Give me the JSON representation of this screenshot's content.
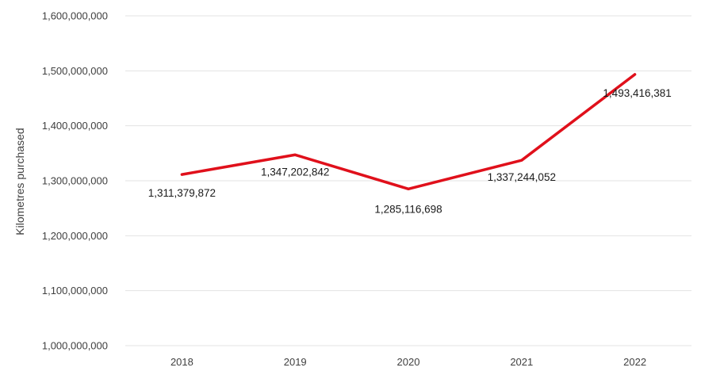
{
  "chart_data": {
    "type": "line",
    "title": "",
    "xlabel": "",
    "ylabel": "Kilometres purchased",
    "ylim": [
      1000000000,
      1600000000
    ],
    "y_ticks": [
      1000000000,
      1100000000,
      1200000000,
      1300000000,
      1400000000,
      1500000000,
      1600000000
    ],
    "y_tick_labels": [
      "1,000,000,000",
      "1,100,000,000",
      "1,200,000,000",
      "1,300,000,000",
      "1,400,000,000",
      "1,500,000,000",
      "1,600,000,000"
    ],
    "categories": [
      "2018",
      "2019",
      "2020",
      "2021",
      "2022"
    ],
    "series": [
      {
        "values": [
          1311379872,
          1347202842,
          1285116698,
          1337244052,
          1493416381
        ],
        "data_labels": [
          "1,311,379,872",
          "1,347,202,842",
          "1,285,116,698",
          "1,337,244,052",
          "1,493,416,381"
        ],
        "color": "#e0101b"
      }
    ],
    "grid": "horizontal",
    "legend": "none"
  }
}
